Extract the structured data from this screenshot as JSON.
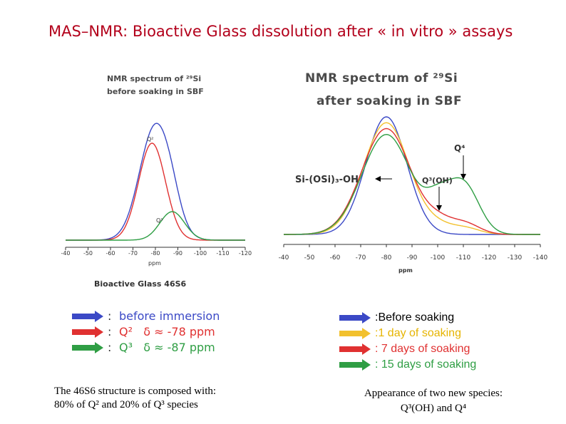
{
  "title": "MAS–NMR: Bioactive Glass dissolution after « in vitro » assays",
  "colors": {
    "title": "#b3001b",
    "blue": "#3b49c6",
    "red": "#e03131",
    "green": "#2f9e44",
    "yellow": "#f2c12e"
  },
  "left_panel": {
    "title_line1": "NMR spectrum of ²⁹Si",
    "title_line2": "before soaking in SBF",
    "peak_q2": "Q²",
    "peak_q3": "Q³",
    "xlabel": "ppm",
    "sample": "Bioactive Glass 46S6",
    "legend": [
      {
        "colon": ":",
        "text": "before immersion",
        "color_key": "blue"
      },
      {
        "colon": ":",
        "text": "Q²   δ ≈ -78 ppm",
        "color_key": "red"
      },
      {
        "colon": ":",
        "text": "Q³   δ ≈ -87 ppm",
        "color_key": "green"
      }
    ],
    "caption_line1": "The 46S6 structure is composed with:",
    "caption_line2": "80% of Q² and 20% of Q³ species"
  },
  "right_panel": {
    "title_line1": "NMR spectrum of ²⁹Si",
    "title_line2": "after soaking in SBF",
    "ann_q4": "Q⁴",
    "ann_q3oh": "Q³(OH)",
    "ann_sioh": "Si-(OSi)₃-OH",
    "xlabel": "ppm",
    "legend": [
      {
        "text": ":Before soaking",
        "color_key": "blue"
      },
      {
        "text": ":1 day of soaking",
        "color_key": "yellow"
      },
      {
        "text": ": 7 days of soaking",
        "color_key": "red"
      },
      {
        "text": ": 15 days of soaking",
        "color_key": "green"
      }
    ],
    "caption_line1": "Appearance of two new species:",
    "caption_line2": "Q³(OH) and Q⁴"
  },
  "chart_data": [
    {
      "type": "line",
      "title": "NMR spectrum of ²⁹Si before soaking in SBF",
      "xlabel": "ppm",
      "ylabel": "",
      "xlim": [
        -40,
        -120
      ],
      "x_ticks": [
        -40,
        -50,
        -60,
        -70,
        -80,
        -90,
        -100,
        -110,
        -120
      ],
      "series": [
        {
          "name": "before immersion",
          "color": "blue",
          "peaks": [
            [
              -80,
              1.0,
              7.0
            ],
            [
              -87,
              0.1,
              4.0
            ]
          ]
        },
        {
          "name": "Q² δ ≈ -78 ppm",
          "color": "red",
          "peaks": [
            [
              -78.5,
              0.85,
              6.0
            ]
          ]
        },
        {
          "name": "Q³ δ ≈ -87 ppm",
          "color": "green",
          "peaks": [
            [
              -87.5,
              0.25,
              5.5
            ]
          ]
        }
      ]
    },
    {
      "type": "line",
      "title": "NMR spectrum of ²⁹Si after soaking in SBF",
      "xlabel": "ppm",
      "ylabel": "",
      "xlim": [
        -40,
        -140
      ],
      "x_ticks": [
        -40,
        -50,
        -60,
        -70,
        -80,
        -90,
        -100,
        -110,
        -120,
        -130,
        -140
      ],
      "series": [
        {
          "name": "Before soaking",
          "color": "blue",
          "peaks": [
            [
              -80,
              1.0,
              8.0
            ]
          ]
        },
        {
          "name": "1 day of soaking",
          "color": "yellow",
          "peaks": [
            [
              -80,
              0.95,
              9.0
            ],
            [
              -100,
              0.05,
              5.0
            ],
            [
              -110,
              0.06,
              6.0
            ]
          ]
        },
        {
          "name": "7 days of soaking",
          "color": "red",
          "peaks": [
            [
              -80,
              0.9,
              9.5
            ],
            [
              -100,
              0.08,
              5.0
            ],
            [
              -110,
              0.1,
              6.0
            ]
          ]
        },
        {
          "name": "15 days of soaking",
          "color": "green",
          "peaks": [
            [
              -80,
              0.85,
              9.5
            ],
            [
              -100,
              0.23,
              5.0
            ],
            [
              -110,
              0.43,
              6.0
            ]
          ]
        }
      ]
    }
  ]
}
